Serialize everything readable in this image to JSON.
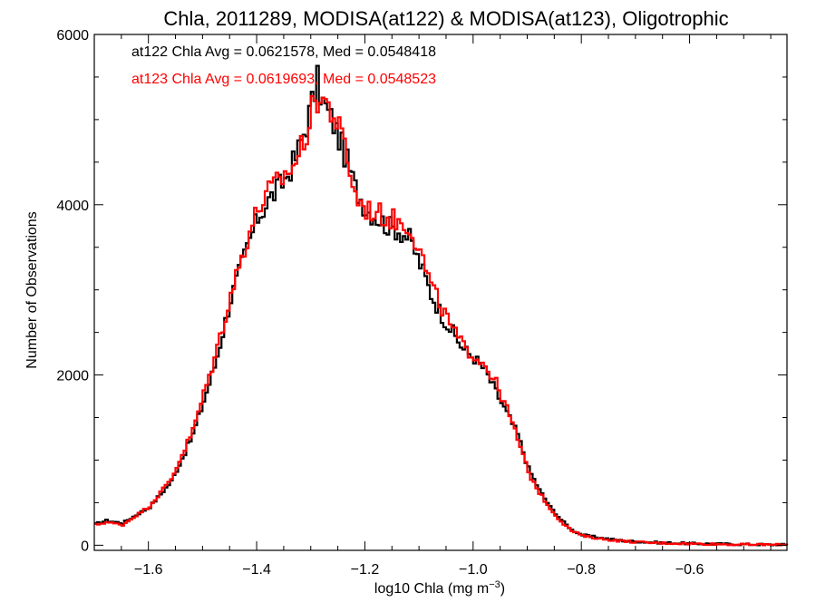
{
  "chart_data": {
    "type": "line",
    "title": "Chla, 2011289, MODISA(at122) & MODISA(at123), Oligotrophic",
    "xlabel": "log10 Chla (mg m",
    "xlabel_sup": "−3",
    "xlabel_end": ")",
    "ylabel": "Number of Observations",
    "xlim": [
      -1.7,
      -0.42
    ],
    "ylim": [
      -60,
      6000
    ],
    "x_ticks": [
      -1.6,
      -1.4,
      -1.2,
      -1.0,
      -0.8,
      -0.6
    ],
    "x_tick_labels": [
      "−1.6",
      "−1.4",
      "−1.2",
      "−1.0",
      "−0.8",
      "−0.6"
    ],
    "y_ticks": [
      0,
      2000,
      4000,
      6000
    ],
    "y_tick_labels": [
      "0",
      "2000",
      "4000",
      "6000"
    ],
    "grid": false,
    "series": [
      {
        "annotation": "at122 Chla Avg = 0.0621578, Med = 0.0548418",
        "color": "#000000",
        "points": [
          [
            -1.7,
            250
          ],
          [
            -1.68,
            290
          ],
          [
            -1.65,
            260
          ],
          [
            -1.6,
            450
          ],
          [
            -1.56,
            750
          ],
          [
            -1.52,
            1300
          ],
          [
            -1.48,
            2100
          ],
          [
            -1.45,
            2900
          ],
          [
            -1.42,
            3500
          ],
          [
            -1.4,
            3850
          ],
          [
            -1.38,
            4050
          ],
          [
            -1.35,
            4300
          ],
          [
            -1.33,
            4550
          ],
          [
            -1.31,
            4950
          ],
          [
            -1.3,
            5200
          ],
          [
            -1.29,
            5450
          ],
          [
            -1.28,
            5200
          ],
          [
            -1.26,
            4950
          ],
          [
            -1.24,
            4600
          ],
          [
            -1.22,
            4200
          ],
          [
            -1.2,
            3950
          ],
          [
            -1.18,
            3850
          ],
          [
            -1.16,
            3750
          ],
          [
            -1.14,
            3700
          ],
          [
            -1.12,
            3600
          ],
          [
            -1.1,
            3300
          ],
          [
            -1.08,
            2950
          ],
          [
            -1.06,
            2700
          ],
          [
            -1.04,
            2500
          ],
          [
            -1.02,
            2300
          ],
          [
            -1.0,
            2200
          ],
          [
            -0.98,
            2050
          ],
          [
            -0.96,
            1800
          ],
          [
            -0.94,
            1550
          ],
          [
            -0.92,
            1300
          ],
          [
            -0.9,
            900
          ],
          [
            -0.88,
            650
          ],
          [
            -0.86,
            450
          ],
          [
            -0.84,
            300
          ],
          [
            -0.82,
            180
          ],
          [
            -0.8,
            120
          ],
          [
            -0.76,
            80
          ],
          [
            -0.72,
            50
          ],
          [
            -0.68,
            35
          ],
          [
            -0.6,
            20
          ],
          [
            -0.5,
            10
          ],
          [
            -0.42,
            5
          ]
        ]
      },
      {
        "annotation": "at123 Chla Avg = 0.0619693, Med = 0.0548523",
        "color": "#ff0000",
        "points": [
          [
            -1.7,
            240
          ],
          [
            -1.68,
            270
          ],
          [
            -1.65,
            240
          ],
          [
            -1.6,
            460
          ],
          [
            -1.56,
            780
          ],
          [
            -1.52,
            1350
          ],
          [
            -1.48,
            2200
          ],
          [
            -1.45,
            2950
          ],
          [
            -1.42,
            3600
          ],
          [
            -1.4,
            3950
          ],
          [
            -1.38,
            4150
          ],
          [
            -1.35,
            4350
          ],
          [
            -1.33,
            4500
          ],
          [
            -1.31,
            4850
          ],
          [
            -1.3,
            5100
          ],
          [
            -1.29,
            5250
          ],
          [
            -1.28,
            5250
          ],
          [
            -1.26,
            5050
          ],
          [
            -1.24,
            4700
          ],
          [
            -1.22,
            4100
          ],
          [
            -1.2,
            3950
          ],
          [
            -1.18,
            3900
          ],
          [
            -1.16,
            3850
          ],
          [
            -1.14,
            3800
          ],
          [
            -1.12,
            3750
          ],
          [
            -1.1,
            3450
          ],
          [
            -1.08,
            3050
          ],
          [
            -1.06,
            2780
          ],
          [
            -1.04,
            2530
          ],
          [
            -1.02,
            2330
          ],
          [
            -1.0,
            2230
          ],
          [
            -0.98,
            2120
          ],
          [
            -0.96,
            1900
          ],
          [
            -0.94,
            1600
          ],
          [
            -0.92,
            1250
          ],
          [
            -0.9,
            850
          ],
          [
            -0.88,
            620
          ],
          [
            -0.86,
            430
          ],
          [
            -0.84,
            280
          ],
          [
            -0.82,
            170
          ],
          [
            -0.8,
            110
          ],
          [
            -0.76,
            70
          ],
          [
            -0.72,
            45
          ],
          [
            -0.68,
            30
          ],
          [
            -0.6,
            18
          ],
          [
            -0.5,
            8
          ],
          [
            -0.42,
            4
          ]
        ]
      }
    ]
  }
}
